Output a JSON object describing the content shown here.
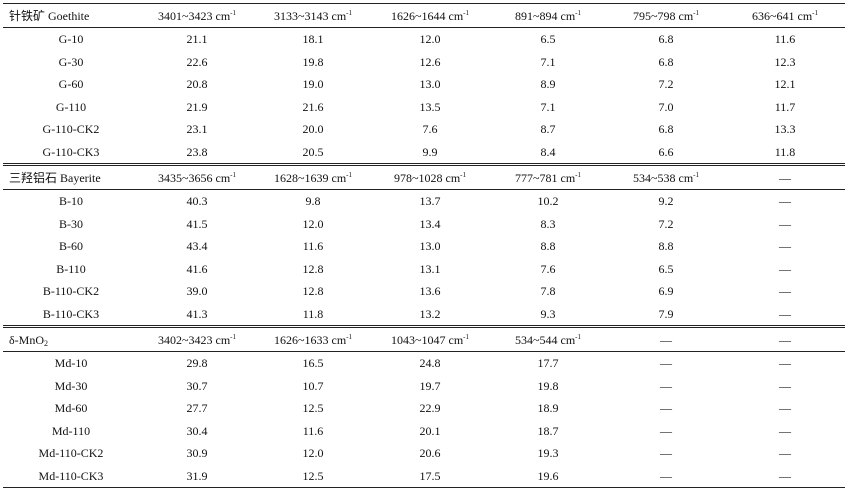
{
  "sections": [
    {
      "header": [
        "针铁矿 Goethite",
        "3401~3423 cm",
        "3133~3143 cm",
        "1626~1644 cm",
        "891~894 cm",
        "795~798 cm",
        "636~641 cm"
      ],
      "header_sup": [
        "",
        "-1",
        "-1",
        "-1",
        "-1",
        "-1",
        "-1"
      ],
      "rows": [
        [
          "G-10",
          "21.1",
          "18.1",
          "12.0",
          "6.5",
          "6.8",
          "11.6"
        ],
        [
          "G-30",
          "22.6",
          "19.8",
          "12.6",
          "7.1",
          "6.8",
          "12.3"
        ],
        [
          "G-60",
          "20.8",
          "19.0",
          "13.0",
          "8.9",
          "7.2",
          "12.1"
        ],
        [
          "G-110",
          "21.9",
          "21.6",
          "13.5",
          "7.1",
          "7.0",
          "11.7"
        ],
        [
          "G-110-CK2",
          "23.1",
          "20.0",
          "7.6",
          "8.7",
          "6.8",
          "13.3"
        ],
        [
          "G-110-CK3",
          "23.8",
          "20.5",
          "9.9",
          "8.4",
          "6.6",
          "11.8"
        ]
      ]
    },
    {
      "header": [
        "三羟铝石 Bayerite",
        "3435~3656 cm",
        "1628~1639 cm",
        "978~1028 cm",
        "777~781 cm",
        "534~538 cm",
        "—"
      ],
      "header_sup": [
        "",
        "-1",
        "-1",
        "-1",
        "-1",
        "-1",
        ""
      ],
      "rows": [
        [
          "B-10",
          "40.3",
          "9.8",
          "13.7",
          "10.2",
          "9.2",
          "—"
        ],
        [
          "B-30",
          "41.5",
          "12.0",
          "13.4",
          "8.3",
          "7.2",
          "—"
        ],
        [
          "B-60",
          "43.4",
          "11.6",
          "13.0",
          "8.8",
          "8.8",
          "—"
        ],
        [
          "B-110",
          "41.6",
          "12.8",
          "13.1",
          "7.6",
          "6.5",
          "—"
        ],
        [
          "B-110-CK2",
          "39.0",
          "12.8",
          "13.6",
          "7.8",
          "6.9",
          "—"
        ],
        [
          "B-110-CK3",
          "41.3",
          "11.8",
          "13.2",
          "9.3",
          "7.9",
          "—"
        ]
      ]
    },
    {
      "header": [
        "δ-MnO",
        "3402~3423 cm",
        "1626~1633 cm",
        "1043~1047 cm",
        "534~544 cm",
        "—",
        "—"
      ],
      "header_sup": [
        "",
        "-1",
        "-1",
        "-1",
        "-1",
        "",
        ""
      ],
      "header_sub_first": "2",
      "rows": [
        [
          "Md-10",
          "29.8",
          "16.5",
          "24.8",
          "17.7",
          "—",
          "—"
        ],
        [
          "Md-30",
          "30.7",
          "10.7",
          "19.7",
          "19.8",
          "—",
          "—"
        ],
        [
          "Md-60",
          "27.7",
          "12.5",
          "22.9",
          "18.9",
          "—",
          "—"
        ],
        [
          "Md-110",
          "30.4",
          "11.6",
          "20.1",
          "18.7",
          "—",
          "—"
        ],
        [
          "Md-110-CK2",
          "30.9",
          "12.0",
          "20.6",
          "19.3",
          "—",
          "—"
        ],
        [
          "Md-110-CK3",
          "31.9",
          "12.5",
          "17.5",
          "19.6",
          "—",
          "—"
        ]
      ]
    }
  ]
}
